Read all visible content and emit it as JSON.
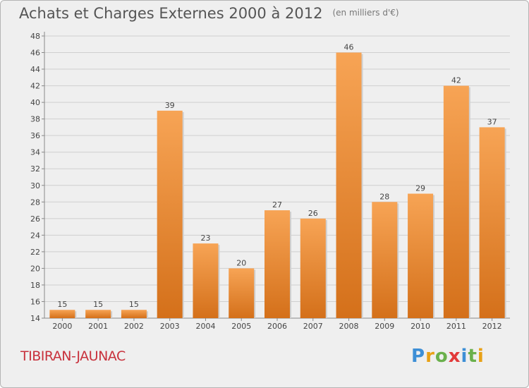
{
  "header": {
    "title": "Achats et Charges Externes 2000 à 2012",
    "subtitle": "(en milliers d'€)"
  },
  "footer": {
    "town": "TIBIRAN-JAUNAC",
    "brand": "Proxiti",
    "brand_colors": [
      "#3d8fd6",
      "#e8a116",
      "#6ab04c",
      "#e23a3a",
      "#3d8fd6",
      "#6ab04c",
      "#e8a116"
    ]
  },
  "colors": {
    "bar_top": "#f7a455",
    "bar_bottom": "#d4701a",
    "town": "#c8313c"
  },
  "chart_data": {
    "type": "bar",
    "categories": [
      "2000",
      "2001",
      "2002",
      "2003",
      "2004",
      "2005",
      "2006",
      "2007",
      "2008",
      "2009",
      "2010",
      "2011",
      "2012"
    ],
    "values": [
      15,
      15,
      15,
      39,
      23,
      20,
      27,
      26,
      46,
      28,
      29,
      42,
      37
    ],
    "ylim": [
      14,
      48
    ],
    "yticks": [
      14,
      16,
      18,
      20,
      22,
      24,
      26,
      28,
      30,
      32,
      34,
      36,
      38,
      40,
      42,
      44,
      46,
      48
    ],
    "grid": true
  }
}
